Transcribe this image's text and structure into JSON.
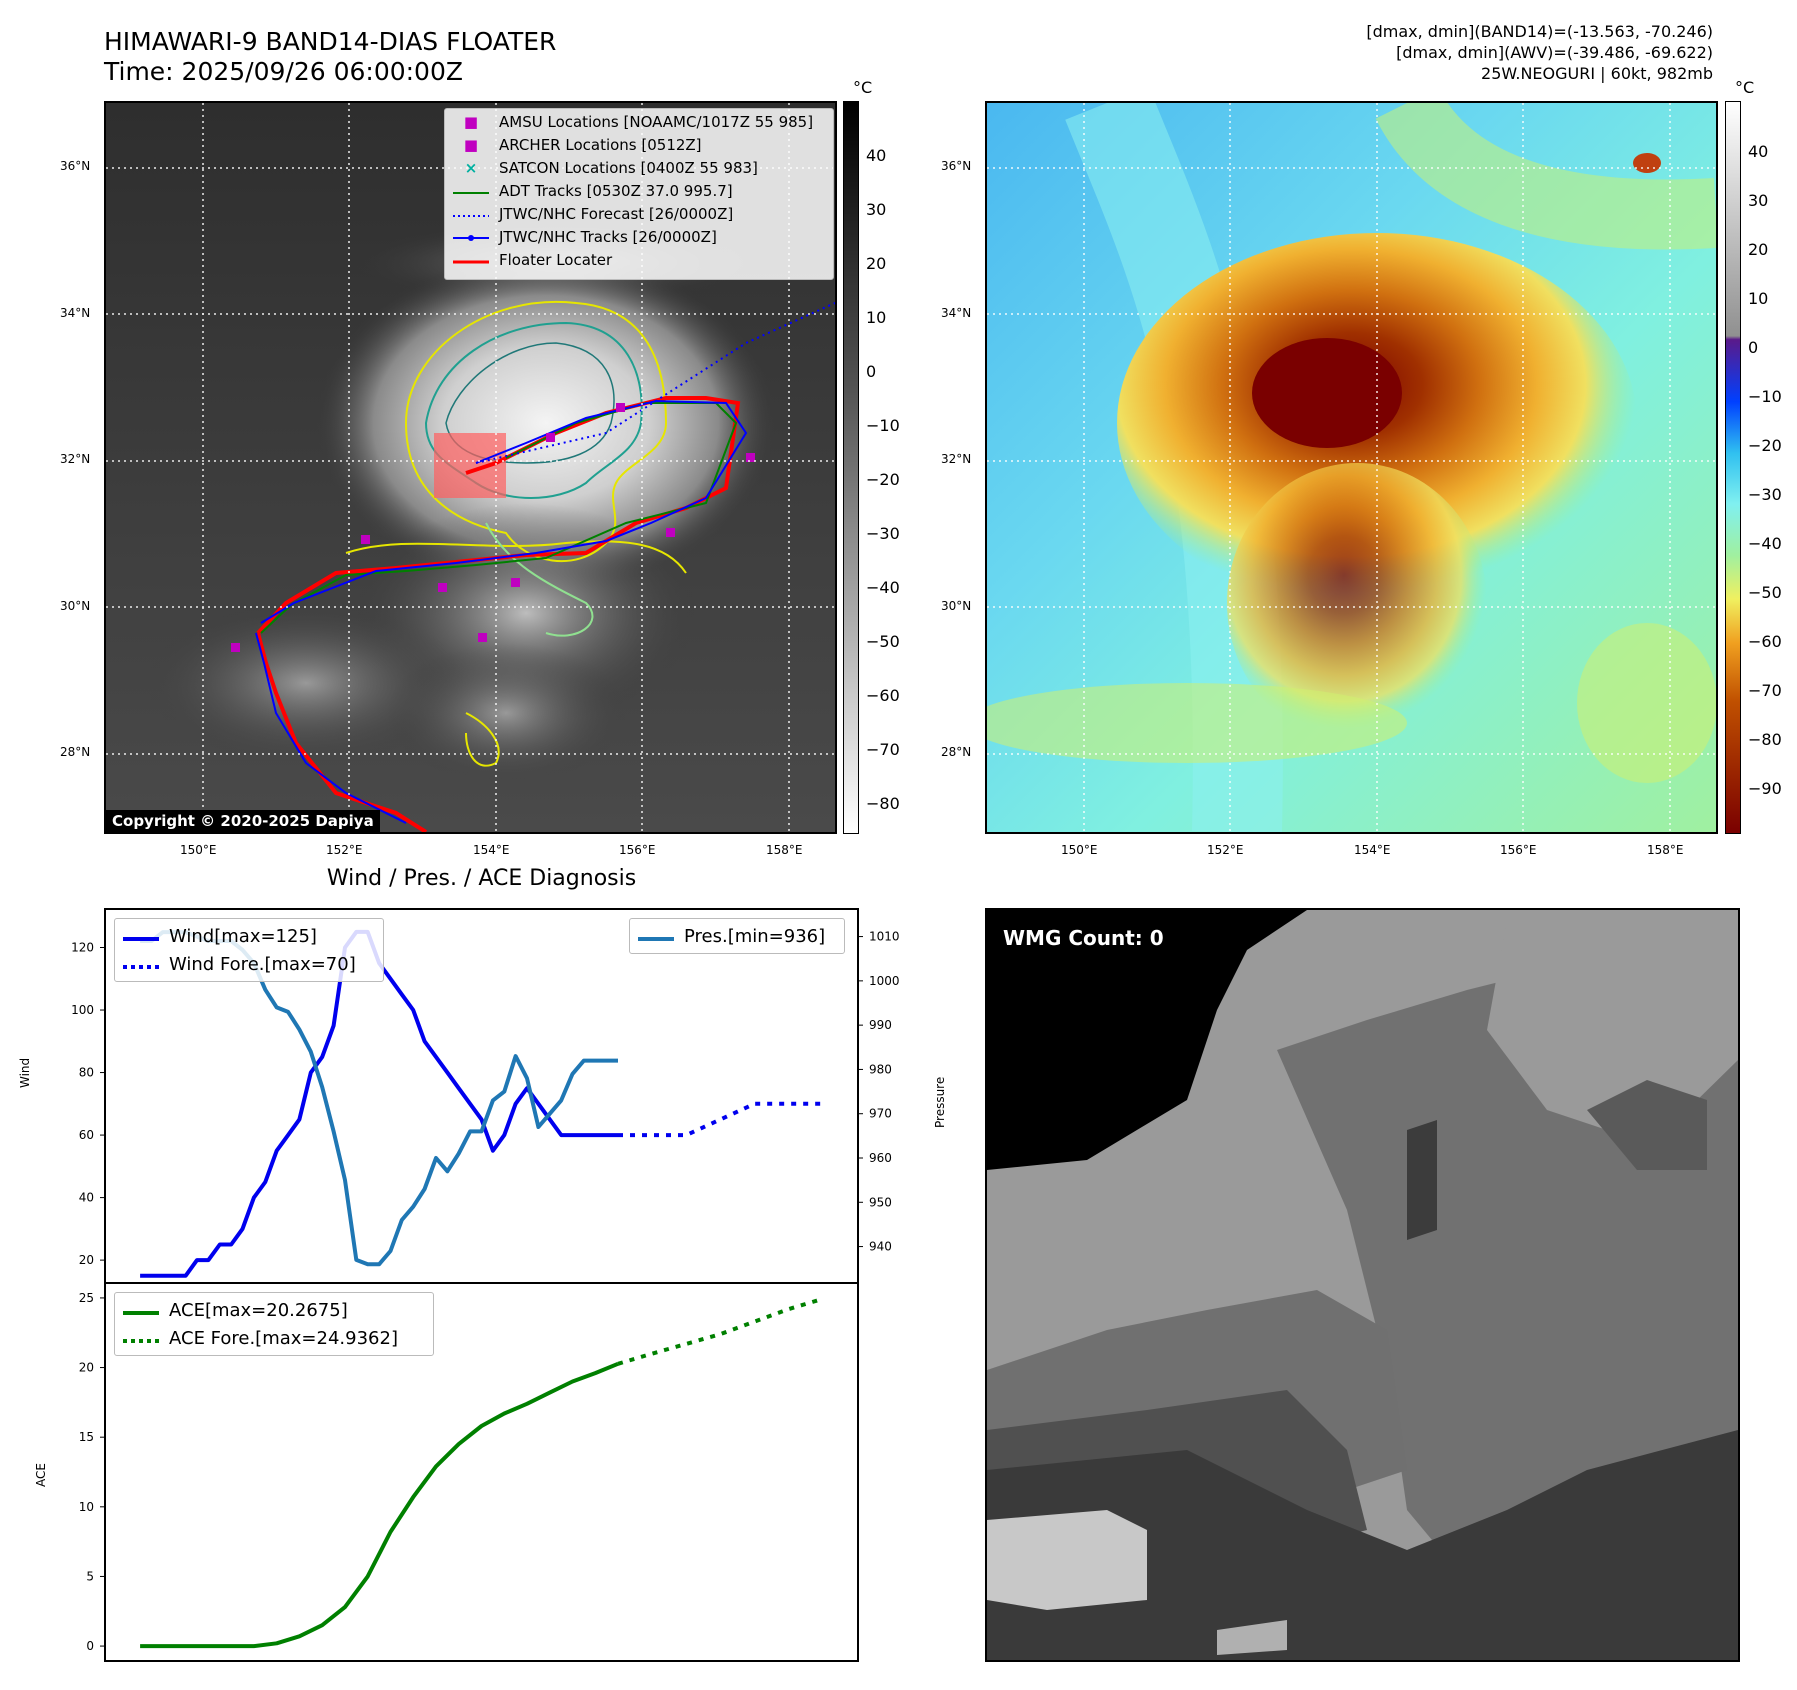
{
  "header": {
    "title_line1": "HIMAWARI-9 BAND14-DIAS FLOATER",
    "title_line2": "Time: 2025/09/26 06:00:00Z",
    "info_line1": "[dmax, dmin](BAND14)=(-13.563, -70.246)",
    "info_line2": "[dmax, dmin](AWV)=(-39.486, -69.622)",
    "info_line3": "25W.NEOGURI | 60kt, 982mb"
  },
  "map_left": {
    "lat_ticks": [
      "36°N",
      "34°N",
      "32°N",
      "30°N",
      "28°N"
    ],
    "lon_ticks": [
      "150°E",
      "152°E",
      "154°E",
      "156°E",
      "158°E"
    ],
    "copyright": "Copyright © 2020-2025 Dapiya",
    "legend": [
      {
        "label": "AMSU Locations [NOAAMC/1017Z 55 985]",
        "color": "#c000c0",
        "marker": "square"
      },
      {
        "label": "ARCHER Locations [0512Z]",
        "color": "#c000c0",
        "marker": "square"
      },
      {
        "label": "SATCON Locations [0400Z 55 983]",
        "color": "#00b0a0",
        "marker": "x"
      },
      {
        "label": "ADT Tracks [0530Z 37.0 995.7]",
        "color": "#008000",
        "marker": "line"
      },
      {
        "label": "JTWC/NHC Forecast [26/0000Z]",
        "color": "#0000ff",
        "marker": "dotted"
      },
      {
        "label": "JTWC/NHC Tracks [26/0000Z]",
        "color": "#0000ff",
        "marker": "line-dot"
      },
      {
        "label": "Floater Locater",
        "color": "#ff0000",
        "marker": "line"
      }
    ],
    "colorbar": {
      "unit": "°C",
      "ticks": [
        "40",
        "30",
        "20",
        "10",
        "0",
        "−10",
        "−20",
        "−30",
        "−40",
        "−50",
        "−60",
        "−70",
        "−80"
      ]
    }
  },
  "map_right": {
    "lat_ticks": [
      "36°N",
      "34°N",
      "32°N",
      "30°N",
      "28°N"
    ],
    "lon_ticks": [
      "150°E",
      "152°E",
      "154°E",
      "156°E",
      "158°E"
    ],
    "colorbar": {
      "unit": "°C",
      "ticks": [
        "40",
        "30",
        "20",
        "10",
        "0",
        "−10",
        "−20",
        "−30",
        "−40",
        "−50",
        "−60",
        "−70",
        "−80",
        "−90"
      ]
    }
  },
  "diagnosis": {
    "title": "Wind / Pres. / ACE Diagnosis",
    "wind_ylabel": "Wind",
    "pres_ylabel": "Pressure",
    "ace_ylabel": "ACE",
    "wind_ticks": [
      "120",
      "100",
      "80",
      "60",
      "40",
      "20"
    ],
    "pres_ticks": [
      "1010",
      "1000",
      "990",
      "980",
      "970",
      "960",
      "950",
      "940"
    ],
    "ace_ticks": [
      "25",
      "20",
      "15",
      "10",
      "5",
      "0"
    ],
    "legend_wind": "Wind[max=125]",
    "legend_wind_fore": "Wind Fore.[max=70]",
    "legend_pres": "Pres.[min=936]",
    "legend_ace": "ACE[max=20.2675]",
    "legend_ace_fore": "ACE Fore.[max=24.9362]",
    "colors": {
      "wind": "#0000ee",
      "pres": "#1f77b4",
      "ace": "#008000"
    }
  },
  "wmg": {
    "label": "WMG Count: 0"
  },
  "chart_data": [
    {
      "type": "line",
      "name": "wind-pressure",
      "title": "Wind / Pres. / ACE Diagnosis",
      "ylabel": "Wind",
      "y2label": "Pressure",
      "ylim": [
        13,
        132
      ],
      "y2lim": [
        932,
        1016
      ],
      "x": [
        0,
        1,
        2,
        3,
        4,
        5,
        6,
        7,
        8,
        9,
        10,
        11,
        12,
        13,
        14,
        15,
        16,
        17,
        18,
        19,
        20,
        21,
        22,
        23,
        24,
        25,
        26,
        27,
        28,
        29,
        30,
        31,
        32,
        33,
        34,
        35,
        36,
        37,
        38,
        39,
        40,
        41,
        42
      ],
      "series": [
        {
          "name": "Wind[max=125]",
          "axis": "y",
          "style": "solid",
          "x": [
            0,
            1,
            2,
            3,
            4,
            5,
            6,
            7,
            8,
            9,
            10,
            11,
            12,
            13,
            14,
            15,
            16,
            17,
            18,
            19,
            20,
            21,
            22,
            23,
            24,
            25,
            26,
            27,
            28,
            29,
            30,
            31,
            32,
            33,
            34,
            35,
            36,
            37,
            38,
            39,
            40,
            41,
            42
          ],
          "values": [
            15,
            15,
            15,
            15,
            15,
            20,
            20,
            25,
            25,
            30,
            40,
            45,
            55,
            60,
            65,
            80,
            85,
            95,
            120,
            125,
            125,
            115,
            110,
            105,
            100,
            90,
            85,
            80,
            75,
            70,
            65,
            55,
            60,
            70,
            75,
            70,
            65,
            60,
            60,
            60,
            60,
            60,
            60
          ]
        },
        {
          "name": "Wind Fore.[max=70]",
          "axis": "y",
          "style": "dotted",
          "x": [
            42,
            45,
            48,
            51,
            54,
            57,
            60
          ],
          "values": [
            60,
            60,
            60,
            65,
            70,
            70,
            70
          ]
        },
        {
          "name": "Pres.[min=936]",
          "axis": "y2",
          "style": "solid",
          "x": [
            0,
            1,
            2,
            3,
            4,
            5,
            6,
            7,
            8,
            9,
            10,
            11,
            12,
            13,
            14,
            15,
            16,
            17,
            18,
            19,
            20,
            21,
            22,
            23,
            24,
            25,
            26,
            27,
            28,
            29,
            30,
            31,
            32,
            33,
            34,
            35,
            36,
            37,
            38,
            39,
            40,
            41,
            42
          ],
          "values": [
            1009,
            1009,
            1011,
            1011,
            1011,
            1010,
            1009,
            1009,
            1009,
            1007,
            1004,
            998,
            994,
            993,
            989,
            984,
            976,
            966,
            955,
            937,
            936,
            936,
            939,
            946,
            949,
            953,
            960,
            957,
            961,
            966,
            966,
            973,
            975,
            983,
            978,
            967,
            970,
            973,
            979,
            982,
            982,
            982,
            982
          ]
        }
      ]
    },
    {
      "type": "line",
      "name": "ace",
      "ylabel": "ACE",
      "ylim": [
        -1,
        26
      ],
      "series": [
        {
          "name": "ACE[max=20.2675]",
          "style": "solid",
          "x": [
            0,
            2,
            4,
            6,
            8,
            10,
            12,
            14,
            16,
            18,
            20,
            22,
            24,
            26,
            28,
            30,
            32,
            34,
            36,
            38,
            40,
            42
          ],
          "values": [
            0,
            0,
            0,
            0,
            0,
            0,
            0.2,
            0.7,
            1.5,
            2.8,
            5.0,
            8.2,
            10.7,
            12.9,
            14.5,
            15.8,
            16.7,
            17.4,
            18.2,
            19.0,
            19.6,
            20.27
          ]
        },
        {
          "name": "ACE Fore.[max=24.9362]",
          "style": "dotted",
          "x": [
            42,
            45,
            48,
            51,
            54,
            57,
            60
          ],
          "values": [
            20.27,
            21.0,
            21.7,
            22.4,
            23.3,
            24.2,
            24.94
          ]
        }
      ]
    }
  ]
}
